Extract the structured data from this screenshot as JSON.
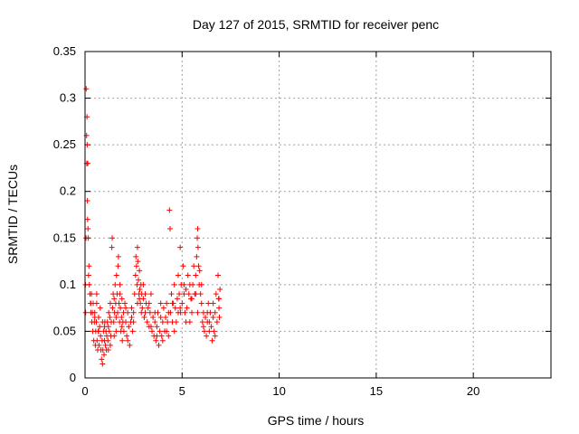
{
  "chart_data": {
    "type": "scatter",
    "title": "Day 127 of 2015, SRMTID for receiver penc",
    "xlabel": "GPS time / hours",
    "ylabel": "SRMTID / TECUs",
    "xlim": [
      0,
      24
    ],
    "ylim": [
      0,
      0.35
    ],
    "xticks": [
      0,
      5,
      10,
      15,
      20
    ],
    "xtick_labels": [
      "0",
      "5",
      "10",
      "15",
      "20"
    ],
    "yticks": [
      0,
      0.05,
      0.1,
      0.15,
      0.2,
      0.25,
      0.3,
      0.35
    ],
    "ytick_labels": [
      "0",
      "0.05",
      "0.1",
      "0.15",
      "0.2",
      "0.25",
      "0.3",
      "0.35"
    ],
    "grid": true,
    "marker": "+",
    "marker_color": "#ff0000",
    "series": [
      {
        "name": "SRMTID",
        "points": [
          [
            0.02,
            0.1
          ],
          [
            0.03,
            0.07
          ],
          [
            0.05,
            0.15
          ],
          [
            0.06,
            0.31
          ],
          [
            0.08,
            0.26
          ],
          [
            0.09,
            0.23
          ],
          [
            0.1,
            0.28
          ],
          [
            0.11,
            0.25
          ],
          [
            0.12,
            0.19
          ],
          [
            0.13,
            0.17
          ],
          [
            0.14,
            0.23
          ],
          [
            0.15,
            0.16
          ],
          [
            0.16,
            0.15
          ],
          [
            0.18,
            0.11
          ],
          [
            0.2,
            0.12
          ],
          [
            0.22,
            0.1
          ],
          [
            0.25,
            0.09
          ],
          [
            0.28,
            0.08
          ],
          [
            0.3,
            0.07
          ],
          [
            0.33,
            0.09
          ],
          [
            0.35,
            0.06
          ],
          [
            0.38,
            0.07
          ],
          [
            0.4,
            0.05
          ],
          [
            0.42,
            0.08
          ],
          [
            0.45,
            0.04
          ],
          [
            0.48,
            0.06
          ],
          [
            0.5,
            0.07
          ],
          [
            0.53,
            0.035
          ],
          [
            0.55,
            0.05
          ],
          [
            0.58,
            0.06
          ],
          [
            0.6,
            0.08
          ],
          [
            0.62,
            0.04
          ],
          [
            0.65,
            0.03
          ],
          [
            0.68,
            0.05
          ],
          [
            0.7,
            0.065
          ],
          [
            0.72,
            0.035
          ],
          [
            0.75,
            0.055
          ],
          [
            0.78,
            0.075
          ],
          [
            0.8,
            0.045
          ],
          [
            0.82,
            0.03
          ],
          [
            0.85,
            0.02
          ],
          [
            0.88,
            0.04
          ],
          [
            0.9,
            0.015
          ],
          [
            0.92,
            0.03
          ],
          [
            0.95,
            0.05
          ],
          [
            0.98,
            0.025
          ],
          [
            1.0,
            0.04
          ],
          [
            1.02,
            0.06
          ],
          [
            1.05,
            0.035
          ],
          [
            1.08,
            0.05
          ],
          [
            1.1,
            0.03
          ],
          [
            1.12,
            0.045
          ],
          [
            1.15,
            0.06
          ],
          [
            1.18,
            0.04
          ],
          [
            1.2,
            0.055
          ],
          [
            1.22,
            0.07
          ],
          [
            1.25,
            0.05
          ],
          [
            1.28,
            0.065
          ],
          [
            1.3,
            0.08
          ],
          [
            1.33,
            0.045
          ],
          [
            1.35,
            0.06
          ],
          [
            1.38,
            0.14
          ],
          [
            1.4,
            0.15
          ],
          [
            1.42,
            0.075
          ],
          [
            1.45,
            0.09
          ],
          [
            1.48,
            0.06
          ],
          [
            1.5,
            0.085
          ],
          [
            1.52,
            0.07
          ],
          [
            1.55,
            0.1
          ],
          [
            1.58,
            0.08
          ],
          [
            1.6,
            0.05
          ],
          [
            1.62,
            0.11
          ],
          [
            1.65,
            0.09
          ],
          [
            1.68,
            0.07
          ],
          [
            1.7,
            0.12
          ],
          [
            1.72,
            0.13
          ],
          [
            1.75,
            0.08
          ],
          [
            1.78,
            0.06
          ],
          [
            1.8,
            0.1
          ],
          [
            1.82,
            0.075
          ],
          [
            1.85,
            0.05
          ],
          [
            1.88,
            0.065
          ],
          [
            1.9,
            0.085
          ],
          [
            1.92,
            0.04
          ],
          [
            1.95,
            0.06
          ],
          [
            1.98,
            0.07
          ],
          [
            2.0,
            0.05
          ],
          [
            2.05,
            0.08
          ],
          [
            2.1,
            0.06
          ],
          [
            2.15,
            0.045
          ],
          [
            2.2,
            0.07
          ],
          [
            2.25,
            0.055
          ],
          [
            2.3,
            0.035
          ],
          [
            2.35,
            0.06
          ],
          [
            2.4,
            0.075
          ],
          [
            2.45,
            0.05
          ],
          [
            2.5,
            0.07
          ],
          [
            2.55,
            0.09
          ],
          [
            2.6,
            0.11
          ],
          [
            2.62,
            0.13
          ],
          [
            2.65,
            0.12
          ],
          [
            2.68,
            0.1
          ],
          [
            2.7,
            0.14
          ],
          [
            2.72,
            0.125
          ],
          [
            2.75,
            0.105
          ],
          [
            2.78,
            0.09
          ],
          [
            2.8,
            0.115
          ],
          [
            2.82,
            0.095
          ],
          [
            2.85,
            0.08
          ],
          [
            2.88,
            0.1
          ],
          [
            2.9,
            0.07
          ],
          [
            2.92,
            0.09
          ],
          [
            2.95,
            0.075
          ],
          [
            3.0,
            0.085
          ],
          [
            3.05,
            0.065
          ],
          [
            3.1,
            0.09
          ],
          [
            3.15,
            0.08
          ],
          [
            3.2,
            0.06
          ],
          [
            3.25,
            0.075
          ],
          [
            3.3,
            0.055
          ],
          [
            3.35,
            0.07
          ],
          [
            3.4,
            0.09
          ],
          [
            3.45,
            0.05
          ],
          [
            3.5,
            0.065
          ],
          [
            3.55,
            0.045
          ],
          [
            3.6,
            0.06
          ],
          [
            3.65,
            0.04
          ],
          [
            3.7,
            0.055
          ],
          [
            3.75,
            0.07
          ],
          [
            3.8,
            0.035
          ],
          [
            3.85,
            0.05
          ],
          [
            3.9,
            0.065
          ],
          [
            3.95,
            0.045
          ],
          [
            4.0,
            0.06
          ],
          [
            4.05,
            0.075
          ],
          [
            4.1,
            0.05
          ],
          [
            4.15,
            0.065
          ],
          [
            4.2,
            0.08
          ],
          [
            4.25,
            0.06
          ],
          [
            4.3,
            0.045
          ],
          [
            4.35,
            0.18
          ],
          [
            4.38,
            0.16
          ],
          [
            4.4,
            0.07
          ],
          [
            4.45,
            0.09
          ],
          [
            4.5,
            0.06
          ],
          [
            4.55,
            0.08
          ],
          [
            4.6,
            0.1
          ],
          [
            4.65,
            0.075
          ],
          [
            4.7,
            0.06
          ],
          [
            4.75,
            0.085
          ],
          [
            4.8,
            0.11
          ],
          [
            4.85,
            0.09
          ],
          [
            4.9,
            0.14
          ],
          [
            4.92,
            0.07
          ],
          [
            4.95,
            0.1
          ],
          [
            5.0,
            0.08
          ],
          [
            5.05,
            0.12
          ],
          [
            5.1,
            0.09
          ],
          [
            5.15,
            0.07
          ],
          [
            5.2,
            0.095
          ],
          [
            5.25,
            0.075
          ],
          [
            5.3,
            0.11
          ],
          [
            5.35,
            0.09
          ],
          [
            5.4,
            0.06
          ],
          [
            5.45,
            0.085
          ],
          [
            5.5,
            0.07
          ],
          [
            5.55,
            0.1
          ],
          [
            5.6,
            0.12
          ],
          [
            5.65,
            0.09
          ],
          [
            5.7,
            0.11
          ],
          [
            5.75,
            0.13
          ],
          [
            5.78,
            0.15
          ],
          [
            5.8,
            0.16
          ],
          [
            5.82,
            0.14
          ],
          [
            5.85,
            0.12
          ],
          [
            5.88,
            0.1
          ],
          [
            5.9,
            0.115
          ],
          [
            5.95,
            0.09
          ],
          [
            6.0,
            0.08
          ],
          [
            6.05,
            0.06
          ],
          [
            6.1,
            0.07
          ],
          [
            6.15,
            0.05
          ],
          [
            6.2,
            0.065
          ],
          [
            6.25,
            0.045
          ],
          [
            6.3,
            0.06
          ],
          [
            6.35,
            0.08
          ],
          [
            6.4,
            0.05
          ],
          [
            6.45,
            0.07
          ],
          [
            6.5,
            0.055
          ],
          [
            6.55,
            0.04
          ],
          [
            6.6,
            0.065
          ],
          [
            6.65,
            0.05
          ],
          [
            6.7,
            0.07
          ],
          [
            6.75,
            0.09
          ],
          [
            6.8,
            0.06
          ],
          [
            6.85,
            0.11
          ],
          [
            6.88,
            0.085
          ],
          [
            6.9,
            0.075
          ],
          [
            6.92,
            0.065
          ],
          [
            6.95,
            0.095
          ],
          [
            0.5,
            0.065
          ],
          [
            0.7,
            0.05
          ],
          [
            1.0,
            0.055
          ],
          [
            1.3,
            0.035
          ],
          [
            1.6,
            0.065
          ],
          [
            1.9,
            0.055
          ],
          [
            2.2,
            0.04
          ],
          [
            2.5,
            0.06
          ],
          [
            2.8,
            0.085
          ],
          [
            3.1,
            0.07
          ],
          [
            3.4,
            0.055
          ],
          [
            3.7,
            0.045
          ],
          [
            4.0,
            0.04
          ],
          [
            4.3,
            0.07
          ],
          [
            4.6,
            0.05
          ],
          [
            4.9,
            0.075
          ],
          [
            5.2,
            0.06
          ],
          [
            5.5,
            0.085
          ],
          [
            5.8,
            0.07
          ],
          [
            6.1,
            0.055
          ],
          [
            6.4,
            0.06
          ],
          [
            6.7,
            0.045
          ],
          [
            0.3,
            0.08
          ],
          [
            0.6,
            0.09
          ],
          [
            0.9,
            0.06
          ],
          [
            1.2,
            0.03
          ],
          [
            1.5,
            0.045
          ],
          [
            1.8,
            0.09
          ],
          [
            2.1,
            0.075
          ],
          [
            2.4,
            0.065
          ],
          [
            2.7,
            0.08
          ],
          [
            3.0,
            0.1
          ],
          [
            3.3,
            0.08
          ],
          [
            3.6,
            0.07
          ],
          [
            3.9,
            0.08
          ],
          [
            4.2,
            0.05
          ],
          [
            4.5,
            0.08
          ],
          [
            4.8,
            0.07
          ],
          [
            5.1,
            0.1
          ],
          [
            5.4,
            0.1
          ],
          [
            5.7,
            0.09
          ],
          [
            6.0,
            0.1
          ],
          [
            6.3,
            0.07
          ],
          [
            6.6,
            0.08
          ],
          [
            6.9,
            0.085
          ]
        ]
      }
    ]
  }
}
